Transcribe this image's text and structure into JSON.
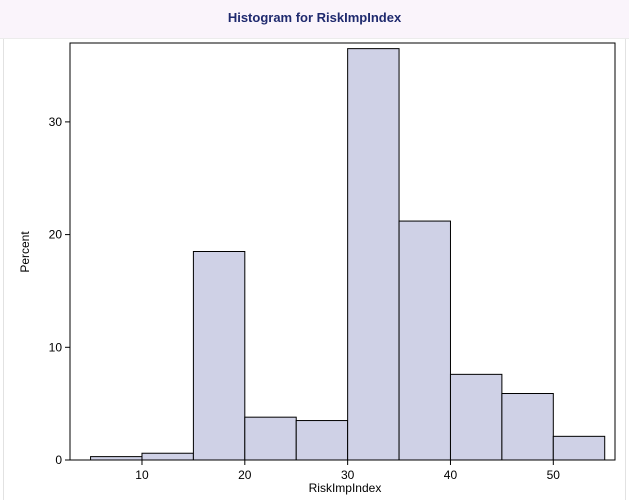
{
  "chart_data": {
    "type": "bar",
    "title": "Histogram for RiskImpIndex",
    "xlabel": "RiskImpIndex",
    "ylabel": "Percent",
    "bin_edges": [
      5,
      10,
      15,
      20,
      25,
      30,
      35,
      40,
      45,
      50,
      55
    ],
    "values": [
      0.3,
      0.6,
      18.5,
      3.8,
      3.5,
      36.5,
      21.2,
      7.6,
      5.9,
      2.1
    ],
    "xlim": [
      3,
      56
    ],
    "ylim": [
      0,
      37
    ],
    "xticks": [
      10,
      20,
      30,
      40,
      50
    ],
    "yticks": [
      0,
      10,
      20,
      30
    ],
    "bar_fill": "#cfd1e6",
    "bar_stroke": "#000000",
    "grid": false,
    "legend": "none"
  }
}
